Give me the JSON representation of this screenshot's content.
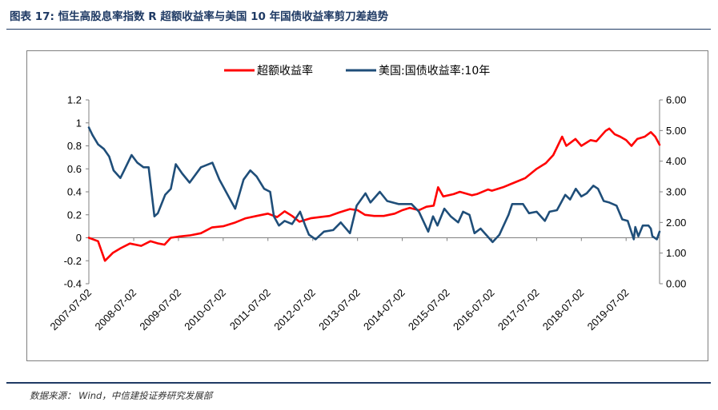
{
  "header": {
    "title": "图表 17: 恒生高股息率指数 R 超额收益率与美国 10 年国债收益率剪刀差趋势"
  },
  "footer": {
    "source": "数据来源： Wind，中信建投证券研究发展部"
  },
  "colors": {
    "title": "#1f3a64",
    "series_excess": "#ff0000",
    "series_treasury": "#1f4e79",
    "frame": "#7f7f7f"
  },
  "chart_data": {
    "type": "line",
    "legend_position": "top-center",
    "grid": false,
    "x_start": "2007-07-02",
    "x_end": "2020-03-31",
    "x_tick_labels": [
      "2007-07-02",
      "2008-07-02",
      "2009-07-02",
      "2010-07-02",
      "2011-07-02",
      "2012-07-02",
      "2013-07-02",
      "2014-07-02",
      "2015-07-02",
      "2016-07-02",
      "2017-07-02",
      "2018-07-02",
      "2019-07-02"
    ],
    "y_left": {
      "min": -0.4,
      "max": 1.2,
      "ticks": [
        "-0.4",
        "-0.2",
        "0",
        "0.2",
        "0.4",
        "0.6",
        "0.8",
        "1",
        "1.2"
      ]
    },
    "y_right": {
      "min": 0.0,
      "max": 6.0,
      "ticks": [
        "0.00",
        "1.00",
        "2.00",
        "3.00",
        "4.00",
        "5.00",
        "6.00"
      ]
    },
    "series": [
      {
        "name": "超额收益率",
        "axis": "left",
        "color": "#ff0000",
        "points": [
          [
            "2007-07-02",
            0.0
          ],
          [
            "2007-09-15",
            -0.03
          ],
          [
            "2007-11-10",
            -0.2
          ],
          [
            "2008-01-15",
            -0.13
          ],
          [
            "2008-03-20",
            -0.09
          ],
          [
            "2008-06-01",
            -0.05
          ],
          [
            "2008-09-01",
            -0.07
          ],
          [
            "2008-11-15",
            -0.03
          ],
          [
            "2009-01-20",
            -0.05
          ],
          [
            "2009-03-10",
            -0.06
          ],
          [
            "2009-05-01",
            0.0
          ],
          [
            "2009-07-02",
            0.01
          ],
          [
            "2009-10-01",
            0.02
          ],
          [
            "2010-01-01",
            0.04
          ],
          [
            "2010-04-01",
            0.09
          ],
          [
            "2010-07-02",
            0.1
          ],
          [
            "2010-10-01",
            0.13
          ],
          [
            "2011-01-01",
            0.17
          ],
          [
            "2011-04-01",
            0.19
          ],
          [
            "2011-07-02",
            0.21
          ],
          [
            "2011-09-15",
            0.18
          ],
          [
            "2011-11-15",
            0.23
          ],
          [
            "2012-01-15",
            0.19
          ],
          [
            "2012-03-15",
            0.14
          ],
          [
            "2012-06-15",
            0.17
          ],
          [
            "2012-09-01",
            0.18
          ],
          [
            "2012-11-15",
            0.19
          ],
          [
            "2013-02-01",
            0.22
          ],
          [
            "2013-05-01",
            0.25
          ],
          [
            "2013-07-02",
            0.24
          ],
          [
            "2013-09-01",
            0.2
          ],
          [
            "2013-11-15",
            0.19
          ],
          [
            "2014-02-01",
            0.19
          ],
          [
            "2014-05-01",
            0.21
          ],
          [
            "2014-07-02",
            0.24
          ],
          [
            "2014-09-01",
            0.26
          ],
          [
            "2014-11-15",
            0.24
          ],
          [
            "2015-01-15",
            0.27
          ],
          [
            "2015-03-15",
            0.28
          ],
          [
            "2015-04-20",
            0.44
          ],
          [
            "2015-06-01",
            0.36
          ],
          [
            "2015-08-25",
            0.38
          ],
          [
            "2015-10-15",
            0.4
          ],
          [
            "2016-01-20",
            0.37
          ],
          [
            "2016-03-01",
            0.38
          ],
          [
            "2016-06-01",
            0.42
          ],
          [
            "2016-07-02",
            0.41
          ],
          [
            "2016-10-01",
            0.44
          ],
          [
            "2017-01-01",
            0.48
          ],
          [
            "2017-04-01",
            0.52
          ],
          [
            "2017-07-02",
            0.6
          ],
          [
            "2017-09-15",
            0.65
          ],
          [
            "2017-11-15",
            0.72
          ],
          [
            "2018-01-26",
            0.88
          ],
          [
            "2018-03-01",
            0.8
          ],
          [
            "2018-05-15",
            0.86
          ],
          [
            "2018-07-02",
            0.8
          ],
          [
            "2018-09-15",
            0.85
          ],
          [
            "2018-11-01",
            0.84
          ],
          [
            "2019-01-15",
            0.93
          ],
          [
            "2019-02-15",
            0.95
          ],
          [
            "2019-04-01",
            0.9
          ],
          [
            "2019-05-15",
            0.88
          ],
          [
            "2019-07-02",
            0.85
          ],
          [
            "2019-08-15",
            0.8
          ],
          [
            "2019-10-01",
            0.86
          ],
          [
            "2019-12-01",
            0.88
          ],
          [
            "2020-01-20",
            0.92
          ],
          [
            "2020-02-25",
            0.88
          ],
          [
            "2020-03-31",
            0.81
          ]
        ]
      },
      {
        "name": "美国:国债收益率:10年",
        "axis": "right",
        "color": "#1f4e79",
        "points": [
          [
            "2007-07-02",
            5.1
          ],
          [
            "2007-08-01",
            4.85
          ],
          [
            "2007-09-15",
            4.55
          ],
          [
            "2007-11-01",
            4.4
          ],
          [
            "2007-12-15",
            4.15
          ],
          [
            "2008-01-20",
            3.7
          ],
          [
            "2008-03-15",
            3.45
          ],
          [
            "2008-04-15",
            3.7
          ],
          [
            "2008-06-15",
            4.2
          ],
          [
            "2008-08-01",
            3.95
          ],
          [
            "2008-09-20",
            3.8
          ],
          [
            "2008-11-01",
            3.8
          ],
          [
            "2008-12-18",
            2.2
          ],
          [
            "2009-01-15",
            2.3
          ],
          [
            "2009-03-15",
            2.9
          ],
          [
            "2009-05-01",
            3.1
          ],
          [
            "2009-06-10",
            3.9
          ],
          [
            "2009-08-01",
            3.6
          ],
          [
            "2009-10-01",
            3.3
          ],
          [
            "2010-01-01",
            3.8
          ],
          [
            "2010-04-05",
            3.95
          ],
          [
            "2010-06-01",
            3.4
          ],
          [
            "2010-08-01",
            2.95
          ],
          [
            "2010-10-08",
            2.45
          ],
          [
            "2010-12-15",
            3.4
          ],
          [
            "2011-02-08",
            3.7
          ],
          [
            "2011-04-01",
            3.5
          ],
          [
            "2011-06-01",
            3.1
          ],
          [
            "2011-07-20",
            3.0
          ],
          [
            "2011-08-20",
            2.2
          ],
          [
            "2011-09-30",
            1.9
          ],
          [
            "2011-11-15",
            2.05
          ],
          [
            "2012-01-15",
            1.95
          ],
          [
            "2012-03-20",
            2.35
          ],
          [
            "2012-05-01",
            1.9
          ],
          [
            "2012-06-01",
            1.6
          ],
          [
            "2012-07-25",
            1.45
          ],
          [
            "2012-10-01",
            1.7
          ],
          [
            "2012-12-15",
            1.75
          ],
          [
            "2013-02-15",
            2.0
          ],
          [
            "2013-05-01",
            1.65
          ],
          [
            "2013-06-25",
            2.55
          ],
          [
            "2013-09-05",
            2.95
          ],
          [
            "2013-10-15",
            2.65
          ],
          [
            "2013-12-31",
            3.0
          ],
          [
            "2014-03-01",
            2.7
          ],
          [
            "2014-06-01",
            2.6
          ],
          [
            "2014-09-15",
            2.6
          ],
          [
            "2014-11-15",
            2.35
          ],
          [
            "2015-01-30",
            1.7
          ],
          [
            "2015-03-10",
            2.2
          ],
          [
            "2015-04-15",
            1.9
          ],
          [
            "2015-06-10",
            2.45
          ],
          [
            "2015-08-01",
            2.2
          ],
          [
            "2015-10-01",
            2.0
          ],
          [
            "2015-11-10",
            2.35
          ],
          [
            "2016-01-01",
            2.25
          ],
          [
            "2016-02-11",
            1.65
          ],
          [
            "2016-04-01",
            1.8
          ],
          [
            "2016-07-08",
            1.36
          ],
          [
            "2016-09-01",
            1.6
          ],
          [
            "2016-11-15",
            2.25
          ],
          [
            "2016-12-15",
            2.6
          ],
          [
            "2017-03-13",
            2.6
          ],
          [
            "2017-05-01",
            2.3
          ],
          [
            "2017-07-02",
            2.35
          ],
          [
            "2017-09-07",
            2.05
          ],
          [
            "2017-10-15",
            2.35
          ],
          [
            "2017-12-15",
            2.4
          ],
          [
            "2018-02-21",
            2.9
          ],
          [
            "2018-04-01",
            2.75
          ],
          [
            "2018-05-17",
            3.1
          ],
          [
            "2018-07-02",
            2.85
          ],
          [
            "2018-08-15",
            2.95
          ],
          [
            "2018-10-08",
            3.2
          ],
          [
            "2018-11-15",
            3.1
          ],
          [
            "2018-12-31",
            2.7
          ],
          [
            "2019-02-15",
            2.65
          ],
          [
            "2019-04-15",
            2.55
          ],
          [
            "2019-06-01",
            2.1
          ],
          [
            "2019-07-15",
            2.05
          ],
          [
            "2019-09-03",
            1.45
          ],
          [
            "2019-09-15",
            1.85
          ],
          [
            "2019-10-10",
            1.55
          ],
          [
            "2019-11-15",
            1.9
          ],
          [
            "2019-12-31",
            1.9
          ],
          [
            "2020-01-20",
            1.8
          ],
          [
            "2020-02-01",
            1.55
          ],
          [
            "2020-03-09",
            1.45
          ],
          [
            "2020-03-31",
            1.7
          ]
        ]
      }
    ]
  }
}
